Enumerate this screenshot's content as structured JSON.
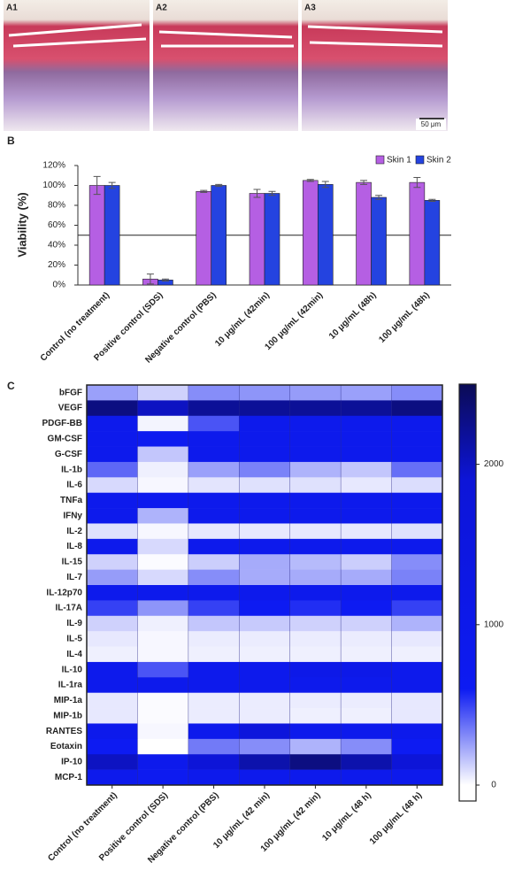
{
  "images": [
    {
      "label": "A1"
    },
    {
      "label": "A2"
    },
    {
      "label": "A3"
    }
  ],
  "scale_bar": "50 μm",
  "chart_data": [
    {
      "type": "bar",
      "label": "B",
      "ylabel": "Viability (%)",
      "categories": [
        "Control (no treatment)",
        "Positive control (SDS)",
        "Negative control (PBS)",
        "10 μg/mL (42min)",
        "100 μg/mL (42min)",
        "10 μg/mL (48h)",
        "100 μg/mL (48h)"
      ],
      "series": [
        {
          "name": "Skin 1",
          "color": "#b55fe3",
          "values": [
            100,
            6,
            94,
            92,
            105,
            103,
            103
          ],
          "errors": [
            9,
            5,
            1,
            4,
            1,
            2,
            5
          ]
        },
        {
          "name": "Skin 2",
          "color": "#2443e0",
          "values": [
            100,
            5,
            100,
            92,
            101,
            88,
            85
          ],
          "errors": [
            3,
            1,
            1,
            2,
            3,
            2,
            1
          ]
        }
      ],
      "ylim": [
        0,
        120
      ],
      "yticks": [
        {
          "value": 0,
          "label": "0%"
        },
        {
          "value": 20,
          "label": "20%"
        },
        {
          "value": 40,
          "label": "40%"
        },
        {
          "value": 60,
          "label": "60%"
        },
        {
          "value": 80,
          "label": "80%"
        },
        {
          "value": 100,
          "label": "100%"
        },
        {
          "value": 120,
          "label": "120%"
        }
      ],
      "reference_line": 50,
      "legend": "top-right"
    },
    {
      "type": "heatmap",
      "label": "C",
      "categories": [
        "Control (no treatment)",
        "Positive control (SDS)",
        "Negative control (PBS)",
        "10 μg/mL (42 min)",
        "100 μg/mL (42 min)",
        "10 μg/mL (48 h)",
        "100 μg/mL (48 h)"
      ],
      "rows": [
        "bFGF",
        "VEGF",
        "PDGF-BB",
        "GM-CSF",
        "G-CSF",
        "IL-1b",
        "IL-6",
        "TNFa",
        "IFNy",
        "IL-2",
        "IL-8",
        "IL-15",
        "IL-7",
        "IL-12p70",
        "IL-17A",
        "IL-9",
        "IL-5",
        "IL-4",
        "IL-10",
        "IL-1ra",
        "MIP-1a",
        "MIP-1b",
        "RANTES",
        "Eotaxin",
        "IP-10",
        "MCP-1"
      ],
      "z": [
        [
          250,
          120,
          300,
          280,
          260,
          250,
          300
        ],
        [
          2300,
          2000,
          2200,
          2200,
          2200,
          2200,
          2300
        ],
        [
          900,
          30,
          450,
          900,
          900,
          900,
          900
        ],
        [
          900,
          700,
          900,
          900,
          900,
          900,
          900
        ],
        [
          900,
          150,
          900,
          900,
          900,
          900,
          900
        ],
        [
          400,
          40,
          250,
          330,
          200,
          150,
          380
        ],
        [
          100,
          20,
          70,
          80,
          80,
          60,
          90
        ],
        [
          900,
          800,
          900,
          900,
          900,
          900,
          900
        ],
        [
          900,
          200,
          900,
          900,
          900,
          900,
          900
        ],
        [
          80,
          20,
          60,
          60,
          60,
          60,
          80
        ],
        [
          900,
          100,
          900,
          900,
          900,
          900,
          900
        ],
        [
          120,
          10,
          130,
          220,
          180,
          130,
          300
        ],
        [
          260,
          100,
          300,
          220,
          220,
          220,
          330
        ],
        [
          900,
          900,
          900,
          900,
          900,
          900,
          900
        ],
        [
          500,
          280,
          500,
          600,
          550,
          600,
          500
        ],
        [
          120,
          40,
          150,
          140,
          120,
          120,
          200
        ],
        [
          60,
          20,
          50,
          50,
          50,
          50,
          60
        ],
        [
          40,
          20,
          40,
          40,
          40,
          40,
          40
        ],
        [
          900,
          450,
          900,
          900,
          1100,
          1100,
          900
        ],
        [
          900,
          900,
          900,
          900,
          900,
          900,
          900
        ],
        [
          60,
          10,
          50,
          50,
          50,
          50,
          60
        ],
        [
          60,
          10,
          50,
          50,
          40,
          40,
          60
        ],
        [
          900,
          20,
          900,
          1700,
          900,
          900,
          900
        ],
        [
          600,
          0,
          350,
          300,
          200,
          300,
          600
        ],
        [
          2000,
          900,
          1900,
          2100,
          2300,
          2100,
          1900
        ],
        [
          900,
          700,
          900,
          900,
          900,
          900,
          900
        ]
      ],
      "zlim": [
        0,
        2500
      ],
      "zticks": [
        0,
        1000,
        2000
      ],
      "colorscale": [
        [
          0,
          "#ffffff"
        ],
        [
          600,
          "#0d1bf2"
        ],
        [
          1900,
          "#0d15d8"
        ],
        [
          2500,
          "#0b0b55"
        ]
      ]
    }
  ]
}
